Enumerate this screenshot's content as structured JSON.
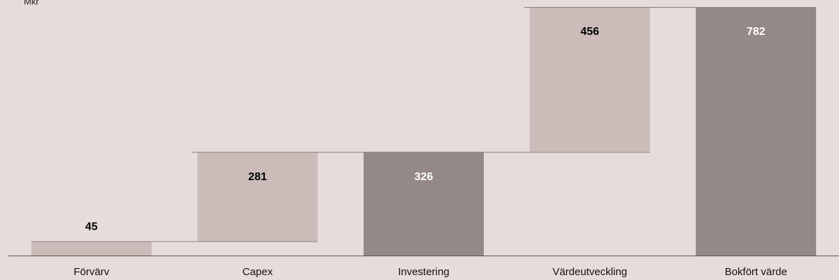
{
  "chart_data": {
    "type": "waterfall",
    "y_label": "Mkr",
    "categories": [
      "Förvärv",
      "Capex",
      "Investering",
      "Värdeutveckling",
      "Bokfört värde"
    ],
    "values": [
      45,
      281,
      326,
      456,
      782
    ],
    "bar_kind": [
      "step",
      "step",
      "total",
      "step",
      "total"
    ],
    "colors": {
      "step": "#cbbcb9",
      "total": "#958987"
    },
    "label_colors": {
      "step": "#000000",
      "total": "#ffffff"
    }
  }
}
